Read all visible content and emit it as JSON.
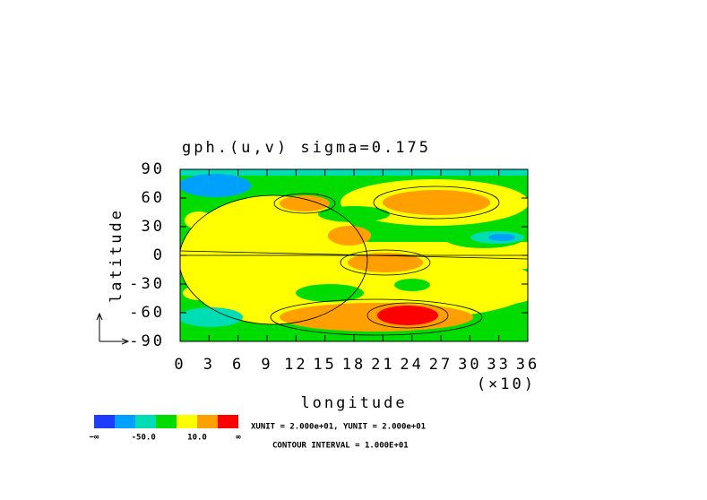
{
  "chart_data": {
    "type": "contour",
    "title": "gph.(u,v) sigma=0.175",
    "x_label": "longitude",
    "x_multiplier": "(×10)",
    "y_label": "latitude",
    "xlim": [
      0,
      36
    ],
    "xticks": [
      0,
      3,
      6,
      9,
      12,
      15,
      18,
      21,
      24,
      27,
      30,
      33,
      36
    ],
    "ylim": [
      -90,
      90
    ],
    "yticks": [
      -90,
      -60,
      -30,
      0,
      30,
      60,
      90
    ],
    "colorbar": {
      "colors": [
        "#1e3cff",
        "#00a0ff",
        "#00dcb4",
        "#00dc00",
        "#ffff00",
        "#ffa000",
        "#ff0000"
      ],
      "labels": [
        "−∞",
        "-50.0",
        "10.0",
        "∞"
      ]
    },
    "unit_note": "XUNIT = 2.000e+01, YUNIT = 2.000e+01",
    "interval_note": "CONTOUR INTERVAL = 1.000E+01"
  }
}
